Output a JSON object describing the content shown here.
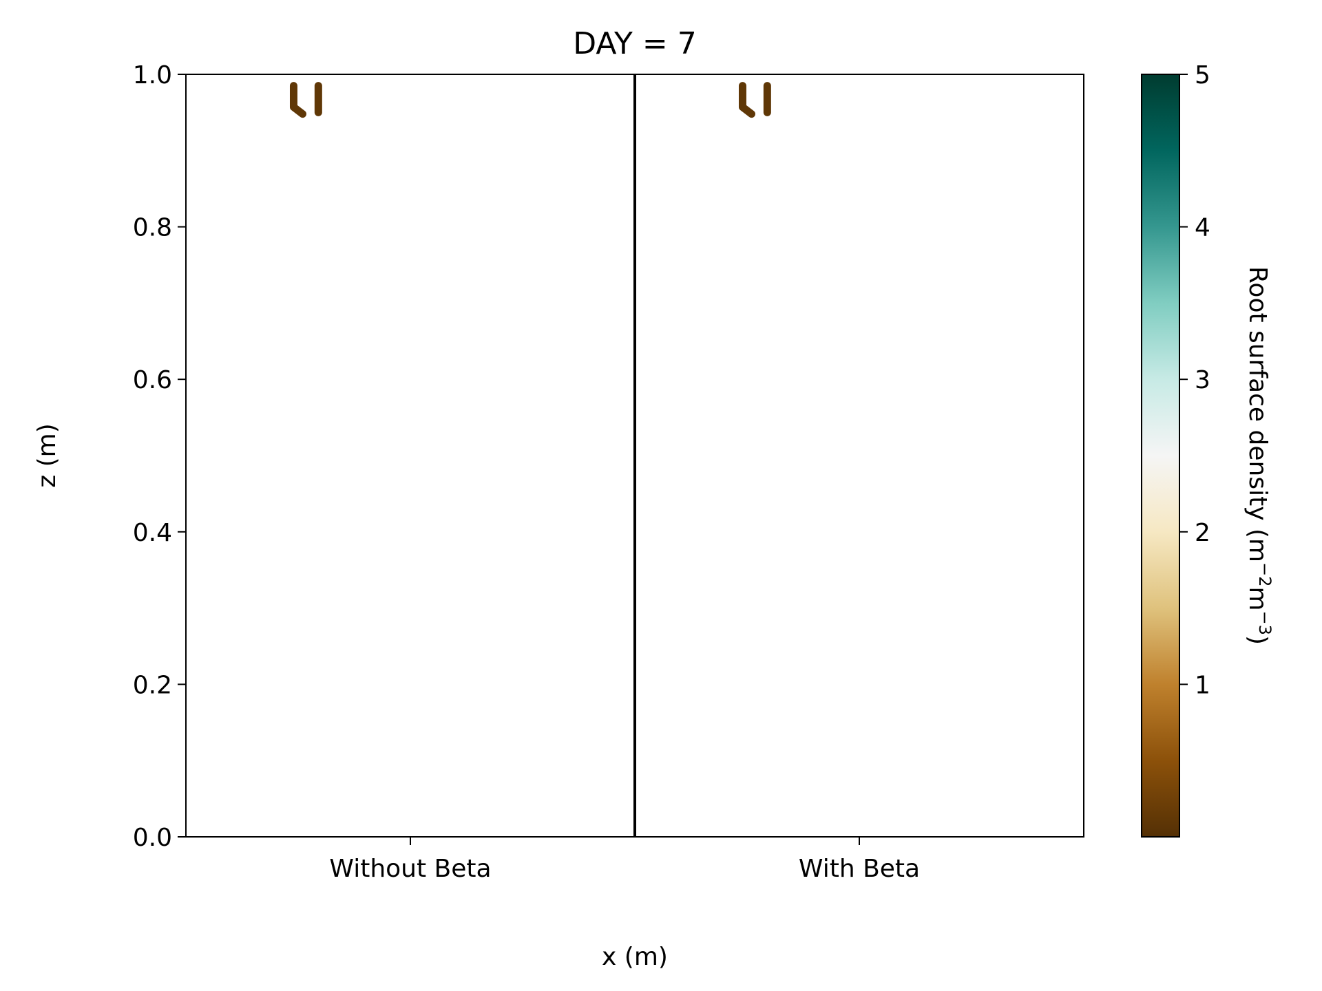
{
  "chart_data": {
    "type": "heatmap",
    "title": "DAY = 7",
    "xlabel": "x (m)",
    "ylabel": "z (m)",
    "ylim": [
      0.0,
      1.0
    ],
    "y_ticks": [
      "0.0",
      "0.2",
      "0.4",
      "0.6",
      "0.8",
      "1.0"
    ],
    "y_tick_values": [
      0.0,
      0.2,
      0.4,
      0.6,
      0.8,
      1.0
    ],
    "categories": [
      "Without Beta",
      "With Beta"
    ],
    "grid": false,
    "colorbar": {
      "label_main": "Root surface density (m",
      "label_sup1": "−2",
      "label_mid": "m",
      "label_sup2": "−3",
      "label_end": ")",
      "range": [
        0,
        5
      ],
      "ticks": [
        "1",
        "2",
        "3",
        "4",
        "5"
      ],
      "tick_values": [
        1,
        2,
        3,
        4,
        5
      ],
      "colormap": "BrBG",
      "colors": [
        "#543005",
        "#8c510a",
        "#bf812d",
        "#dfc27d",
        "#f6e8c3",
        "#f5f5f5",
        "#c7eae5",
        "#80cdc1",
        "#35978f",
        "#01665e",
        "#003c30"
      ]
    },
    "panels": [
      {
        "name": "Without Beta",
        "roots": [
          {
            "x": -0.26,
            "z_top": 0.985,
            "z_bottom": 0.957,
            "bend_x": -0.24,
            "bend_z": 0.948,
            "value": 0.1
          },
          {
            "x": -0.205,
            "z_top": 0.985,
            "z_bottom": 0.95,
            "value": 0.1
          }
        ]
      },
      {
        "name": "With Beta",
        "roots": [
          {
            "x": -0.26,
            "z_top": 0.985,
            "z_bottom": 0.957,
            "bend_x": -0.24,
            "bend_z": 0.948,
            "value": 0.1
          },
          {
            "x": -0.205,
            "z_top": 0.985,
            "z_bottom": 0.95,
            "value": 0.1
          }
        ]
      }
    ]
  }
}
